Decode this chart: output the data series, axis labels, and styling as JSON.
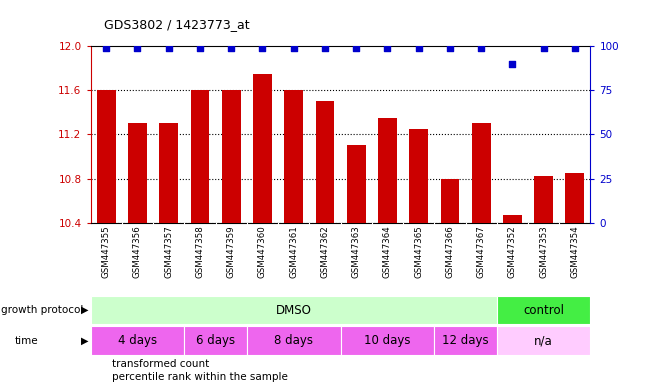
{
  "title": "GDS3802 / 1423773_at",
  "samples": [
    "GSM447355",
    "GSM447356",
    "GSM447357",
    "GSM447358",
    "GSM447359",
    "GSM447360",
    "GSM447361",
    "GSM447362",
    "GSM447363",
    "GSM447364",
    "GSM447365",
    "GSM447366",
    "GSM447367",
    "GSM447352",
    "GSM447353",
    "GSM447354"
  ],
  "bar_values": [
    11.6,
    11.3,
    11.3,
    11.6,
    11.6,
    11.75,
    11.6,
    11.5,
    11.1,
    11.35,
    11.25,
    10.8,
    11.3,
    10.47,
    10.82,
    10.85
  ],
  "percentile_values": [
    99,
    99,
    99,
    99,
    99,
    99,
    99,
    99,
    99,
    99,
    99,
    99,
    99,
    90,
    99,
    99
  ],
  "ylim": [
    10.4,
    12.0
  ],
  "yticks_left": [
    10.4,
    10.8,
    11.2,
    11.6,
    12.0
  ],
  "yticks_right": [
    0,
    25,
    50,
    75,
    100
  ],
  "bar_color": "#cc0000",
  "dot_color": "#0000cc",
  "protocol_groups": [
    {
      "label": "DMSO",
      "start": 0,
      "end": 12,
      "color": "#ccffcc"
    },
    {
      "label": "control",
      "start": 13,
      "end": 15,
      "color": "#44ee44"
    }
  ],
  "time_groups": [
    {
      "label": "4 days",
      "start": 0,
      "end": 2,
      "color": "#ee66ee"
    },
    {
      "label": "6 days",
      "start": 3,
      "end": 4,
      "color": "#ee66ee"
    },
    {
      "label": "8 days",
      "start": 5,
      "end": 7,
      "color": "#ee66ee"
    },
    {
      "label": "10 days",
      "start": 8,
      "end": 10,
      "color": "#ee66ee"
    },
    {
      "label": "12 days",
      "start": 11,
      "end": 12,
      "color": "#ee66ee"
    },
    {
      "label": "n/a",
      "start": 13,
      "end": 15,
      "color": "#ffccff"
    }
  ],
  "legend_bar_label": "transformed count",
  "legend_dot_label": "percentile rank within the sample",
  "growth_protocol_label": "growth protocol",
  "time_label": "time",
  "xlabel_gray": "#d8d8d8",
  "xlabel_sep": "#ffffff"
}
